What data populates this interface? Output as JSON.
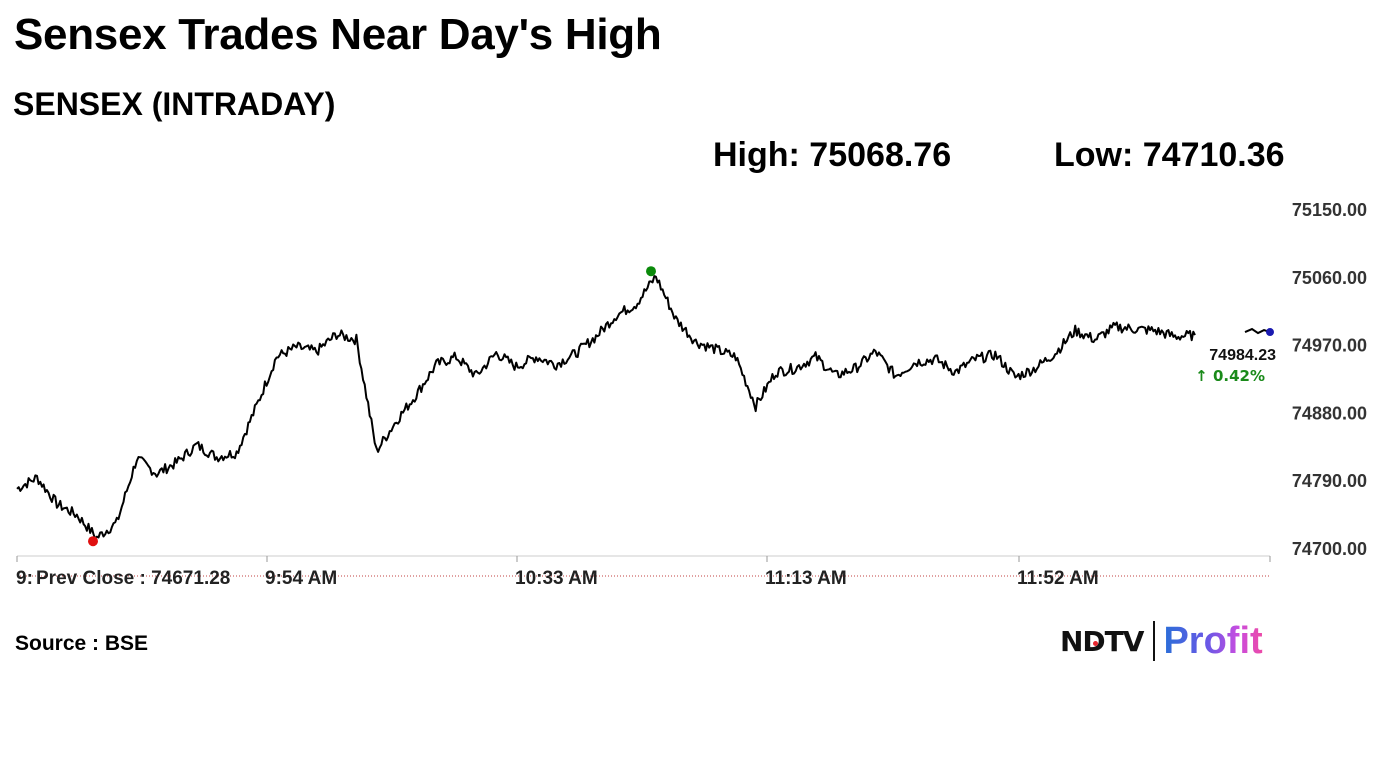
{
  "header": {
    "title": "Sensex Trades Near Day's High",
    "subtitle": "SENSEX (INTRADAY)",
    "high_text": "High: 75068.76",
    "low_text": "Low: 74710.36"
  },
  "footer": {
    "source": "Source : BSE",
    "brand_ndtv": "NDTV",
    "brand_profit": "Profit"
  },
  "colors": {
    "line": "#000000",
    "high_marker": "#0a8a0a",
    "low_marker": "#e01010",
    "last_marker": "#1a1ab0",
    "change_positive": "#1a8a1a",
    "prev_close_line": "#c04040"
  },
  "chart_data": {
    "type": "line",
    "title": "SENSEX (INTRADAY)",
    "xlabel": "",
    "ylabel": "",
    "ylim": [
      74700,
      75150
    ],
    "y_ticks": [
      "75150.00",
      "75060.00",
      "74970.00",
      "74880.00",
      "74790.00",
      "74700.00"
    ],
    "x_tick_labels": [
      "9:",
      "9:54 AM",
      "10:33 AM",
      "11:13 AM",
      "11:52 AM"
    ],
    "prev_close_label": "Prev Close : 74671.28",
    "prev_close": 74671.28,
    "last_value": "74984.23",
    "change_text": "↑ 0.42%",
    "high": 75068.76,
    "low": 74710.36,
    "grid": false,
    "series": [
      {
        "x": [
          "09:15",
          "09:18",
          "09:22",
          "09:25",
          "09:28",
          "09:31",
          "09:34",
          "09:37",
          "09:40",
          "09:43",
          "09:46",
          "09:49",
          "09:52",
          "09:55",
          "09:58",
          "10:01",
          "10:04",
          "10:07",
          "10:10",
          "10:13",
          "10:16",
          "10:19",
          "10:22",
          "10:25",
          "10:28",
          "10:31",
          "10:34",
          "10:37",
          "10:40",
          "10:43",
          "10:46",
          "10:49",
          "10:52",
          "10:55",
          "10:58",
          "11:01",
          "11:04",
          "11:07",
          "11:10",
          "11:13",
          "11:16",
          "11:19",
          "11:22",
          "11:25",
          "11:28",
          "11:31",
          "11:34",
          "11:37",
          "11:40",
          "11:43",
          "11:46",
          "11:49",
          "11:52",
          "11:55",
          "11:58",
          "12:01",
          "12:04",
          "12:07",
          "12:10",
          "12:13"
        ],
        "values": [
          74780,
          74795,
          74760,
          74745,
          74715,
          74735,
          74820,
          74800,
          74815,
          74838,
          74822,
          74828,
          74890,
          74955,
          74968,
          74962,
          74985,
          74978,
          74830,
          74870,
          74905,
          74945,
          74955,
          74930,
          74960,
          74942,
          74955,
          74945,
          74960,
          74982,
          75010,
          75025,
          75062,
          75005,
          74975,
          74965,
          74955,
          74890,
          74935,
          74940,
          74955,
          74930,
          74940,
          74962,
          74930,
          74948,
          74952,
          74935,
          74952,
          74958,
          74928,
          74940,
          74960,
          74990,
          74978,
          74995,
          74992,
          74990,
          74982,
          74984
        ]
      }
    ]
  }
}
